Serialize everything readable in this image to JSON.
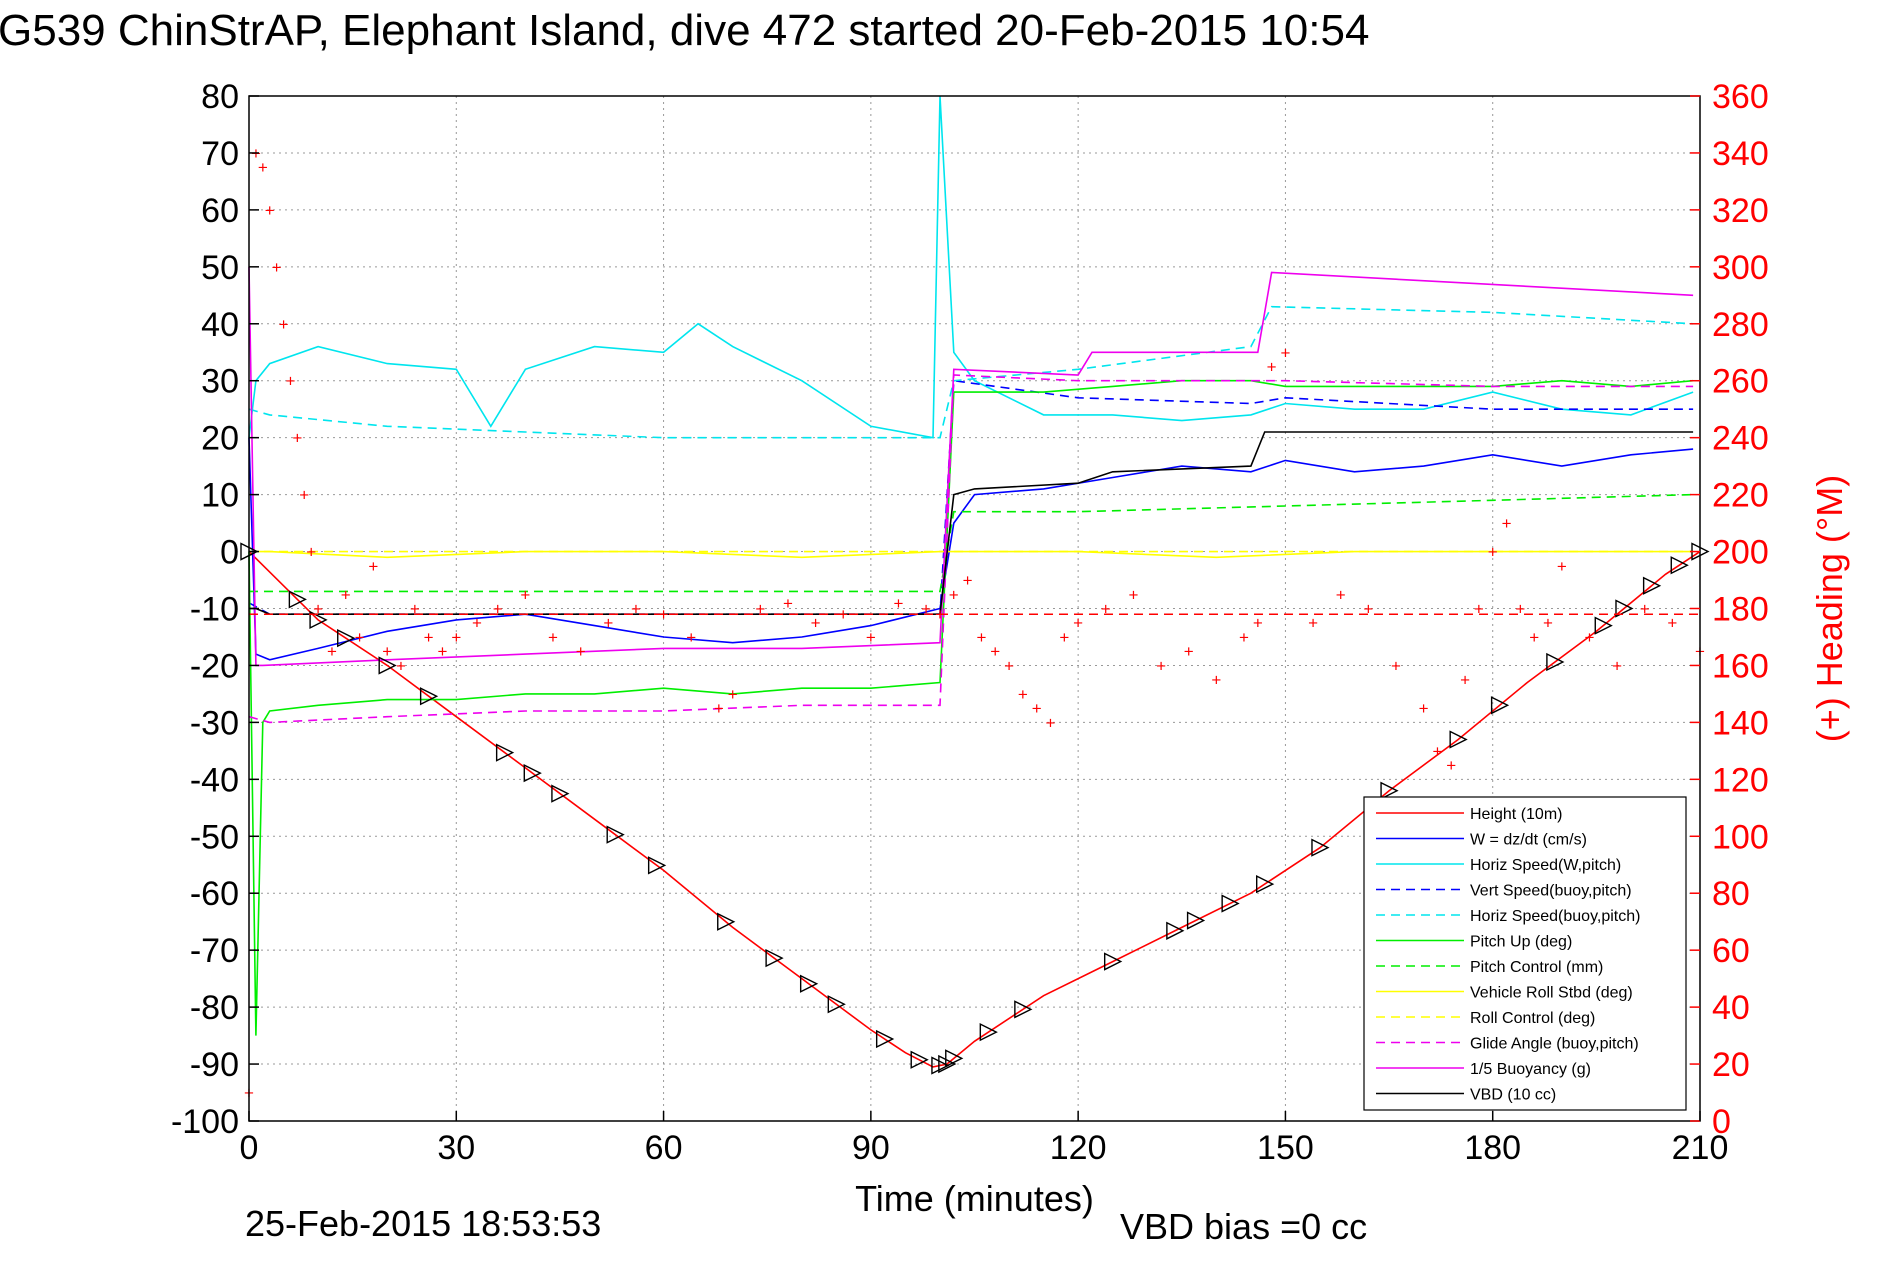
{
  "title": "G539 ChinStrAP, Elephant Island, dive 472 started 20-Feb-2015 10:54",
  "footer": {
    "timestamp": "25-Feb-2015 18:53:53",
    "vbd_bias": "VBD bias =0 cc"
  },
  "chart_data": {
    "type": "line",
    "xlabel": "Time (minutes)",
    "ylabel": "",
    "y2label": "(+) Heading (°M)",
    "xlim": [
      0,
      210
    ],
    "ylim": [
      -100,
      80
    ],
    "y2lim": [
      0,
      360
    ],
    "xticks": [
      "0",
      "30",
      "60",
      "90",
      "120",
      "150",
      "180",
      "210"
    ],
    "yticks": [
      "80",
      "70",
      "60",
      "50",
      "40",
      "30",
      "20",
      "10",
      "0",
      "-10",
      "-20",
      "-30",
      "-40",
      "-50",
      "-60",
      "-70",
      "-80",
      "-90",
      "-100"
    ],
    "y2ticks": [
      "360",
      "340",
      "320",
      "300",
      "280",
      "260",
      "240",
      "220",
      "200",
      "180",
      "160",
      "140",
      "120",
      "100",
      "80",
      "60",
      "40",
      "20",
      "0"
    ],
    "grid": true,
    "legend_position": "bottom-right",
    "legend": [
      {
        "label": "Height (10m)",
        "color": "#ff0000",
        "dash": false
      },
      {
        "label": "W = dz/dt (cm/s)",
        "color": "#0000ff",
        "dash": false
      },
      {
        "label": "Horiz Speed(W,pitch)",
        "color": "#00e5ee",
        "dash": false
      },
      {
        "label": "Vert Speed(buoy,pitch)",
        "color": "#0000ff",
        "dash": true
      },
      {
        "label": "Horiz Speed(buoy,pitch)",
        "color": "#00e5ee",
        "dash": true
      },
      {
        "label": "Pitch Up (deg)",
        "color": "#00ee00",
        "dash": false
      },
      {
        "label": "Pitch Control (mm)",
        "color": "#00ee00",
        "dash": true
      },
      {
        "label": "Vehicle Roll Stbd (deg)",
        "color": "#ffff00",
        "dash": false
      },
      {
        "label": "Roll Control (deg)",
        "color": "#ffff00",
        "dash": true
      },
      {
        "label": "Glide Angle (buoy,pitch)",
        "color": "#ee00ee",
        "dash": true
      },
      {
        "label": "1/5 Buoyancy (g)",
        "color": "#ee00ee",
        "dash": false
      },
      {
        "label": "VBD (10 cc)",
        "color": "#000000",
        "dash": false
      }
    ],
    "series": [
      {
        "name": "Height (10m)",
        "x": [
          0,
          5,
          10,
          20,
          30,
          40,
          50,
          60,
          70,
          80,
          90,
          95,
          99,
          101,
          105,
          115,
          125,
          135,
          145,
          155,
          165,
          175,
          185,
          195,
          205,
          210
        ],
        "y": [
          0,
          -6,
          -12,
          -20,
          -29,
          -38,
          -47,
          -56,
          -66,
          -75,
          -84,
          -88,
          -90.5,
          -90,
          -86,
          -78,
          -72,
          -66,
          -60,
          -52,
          -42,
          -33,
          -23,
          -14,
          -4,
          0
        ]
      },
      {
        "name": "W = dz/dt (cm/s)",
        "x": [
          0,
          1,
          3,
          10,
          20,
          30,
          40,
          50,
          60,
          70,
          80,
          90,
          100,
          102,
          105,
          115,
          125,
          135,
          145,
          150,
          160,
          170,
          180,
          190,
          200,
          209
        ],
        "y": [
          20,
          -18,
          -19,
          -17,
          -14,
          -12,
          -11,
          -13,
          -15,
          -16,
          -15,
          -13,
          -10,
          5,
          10,
          11,
          13,
          15,
          14,
          16,
          14,
          15,
          17,
          15,
          17,
          18
        ]
      },
      {
        "name": "Horiz Speed(W,pitch)",
        "x": [
          0,
          1,
          3,
          10,
          20,
          30,
          35,
          40,
          50,
          60,
          65,
          70,
          80,
          90,
          99,
          100,
          102,
          105,
          115,
          125,
          135,
          145,
          150,
          160,
          170,
          180,
          190,
          200,
          209
        ],
        "y": [
          20,
          30,
          33,
          36,
          33,
          32,
          22,
          32,
          36,
          35,
          40,
          36,
          30,
          22,
          20,
          80,
          35,
          30,
          24,
          24,
          23,
          24,
          26,
          25,
          25,
          28,
          25,
          24,
          28
        ]
      },
      {
        "name": "Vert Speed(buoy,pitch)",
        "x": [
          0,
          3,
          30,
          60,
          90,
          100,
          102,
          120,
          145,
          150,
          180,
          209
        ],
        "y": [
          -9,
          -11,
          -11,
          -11,
          -11,
          -11,
          30,
          27,
          26,
          27,
          25,
          25
        ]
      },
      {
        "name": "Horiz Speed(buoy,pitch)",
        "x": [
          0,
          3,
          20,
          40,
          60,
          90,
          100,
          102,
          120,
          145,
          148,
          180,
          209
        ],
        "y": [
          25,
          24,
          22,
          21,
          20,
          20,
          20,
          30,
          32,
          36,
          43,
          42,
          40
        ]
      },
      {
        "name": "Pitch Up (deg)",
        "x": [
          0,
          1,
          2,
          3,
          10,
          20,
          30,
          40,
          50,
          60,
          70,
          80,
          90,
          100,
          102,
          105,
          115,
          125,
          135,
          145,
          150,
          160,
          170,
          180,
          190,
          200,
          209
        ],
        "y": [
          0,
          -85,
          -30,
          -28,
          -27,
          -26,
          -26,
          -25,
          -25,
          -24,
          -25,
          -24,
          -24,
          -23,
          28,
          28,
          28,
          29,
          30,
          30,
          29,
          29,
          29,
          29,
          30,
          29,
          30
        ]
      },
      {
        "name": "Pitch Control (mm)",
        "x": [
          0,
          3,
          100,
          102,
          120,
          150,
          180,
          209
        ],
        "y": [
          -7,
          -7,
          -7,
          7,
          7,
          8,
          9,
          10
        ]
      },
      {
        "name": "Vehicle Roll Stbd (deg)",
        "x": [
          0,
          3,
          20,
          40,
          60,
          80,
          100,
          120,
          140,
          160,
          180,
          209
        ],
        "y": [
          0,
          0,
          -1,
          0,
          0,
          -1,
          0,
          0,
          -1,
          0,
          0,
          0
        ]
      },
      {
        "name": "Roll Control (deg)",
        "x": [
          0,
          3,
          209
        ],
        "y": [
          0,
          0,
          0
        ]
      },
      {
        "name": "Glide Angle (buoy,pitch)",
        "x": [
          0,
          3,
          20,
          40,
          60,
          80,
          100,
          102,
          120,
          145,
          150,
          180,
          209
        ],
        "y": [
          -29,
          -30,
          -29,
          -28,
          -28,
          -27,
          -27,
          31,
          30,
          30,
          30,
          29,
          29
        ]
      },
      {
        "name": "1/5 Buoyancy (g)",
        "x": [
          0,
          1,
          2,
          20,
          40,
          60,
          80,
          100,
          102,
          120,
          122,
          146,
          148,
          209
        ],
        "y": [
          50,
          -20,
          -20,
          -19,
          -18,
          -17,
          -17,
          -16,
          32,
          31,
          35,
          35,
          49,
          45
        ]
      },
      {
        "name": "VBD (10 cc)",
        "x": [
          0,
          1,
          3,
          20,
          50,
          100,
          102,
          105,
          120,
          125,
          145,
          147,
          209
        ],
        "y": [
          -10,
          -10,
          -11,
          -11,
          -11,
          -11,
          10,
          11,
          12,
          14,
          15,
          21,
          21
        ]
      }
    ],
    "heading": {
      "name": "(+) Heading (°M)",
      "marker": "+",
      "x": [
        0,
        1,
        2,
        3,
        4,
        5,
        6,
        7,
        8,
        9,
        10,
        12,
        14,
        16,
        18,
        20,
        22,
        24,
        26,
        28,
        30,
        33,
        36,
        40,
        44,
        48,
        52,
        56,
        60,
        64,
        68,
        70,
        74,
        78,
        82,
        86,
        90,
        94,
        98,
        100,
        102,
        104,
        106,
        108,
        110,
        112,
        114,
        116,
        118,
        120,
        124,
        128,
        132,
        136,
        140,
        144,
        146,
        148,
        150,
        154,
        158,
        162,
        166,
        170,
        172,
        174,
        176,
        178,
        180,
        182,
        184,
        186,
        188,
        190,
        194,
        198,
        202,
        206,
        210
      ],
      "y": [
        10,
        340,
        335,
        320,
        300,
        280,
        260,
        240,
        220,
        200,
        180,
        165,
        185,
        170,
        195,
        165,
        160,
        180,
        170,
        165,
        170,
        175,
        180,
        185,
        170,
        165,
        175,
        180,
        178,
        170,
        145,
        150,
        180,
        182,
        175,
        178,
        170,
        182,
        180,
        178,
        185,
        190,
        170,
        165,
        160,
        150,
        145,
        140,
        170,
        175,
        180,
        185,
        160,
        165,
        155,
        170,
        175,
        265,
        270,
        175,
        185,
        180,
        160,
        145,
        130,
        125,
        155,
        180,
        200,
        210,
        180,
        170,
        175,
        195,
        170,
        160,
        180,
        175,
        165
      ]
    },
    "heading_reference": 178,
    "marker_points_x": [
      0,
      7,
      10,
      14,
      20,
      26,
      37,
      41,
      45,
      53,
      59,
      69,
      76,
      81,
      85,
      92,
      97,
      100,
      101,
      102,
      107,
      112,
      125,
      134,
      137,
      142,
      147,
      155,
      165,
      175,
      181,
      189,
      196,
      199,
      203,
      207,
      210
    ]
  }
}
